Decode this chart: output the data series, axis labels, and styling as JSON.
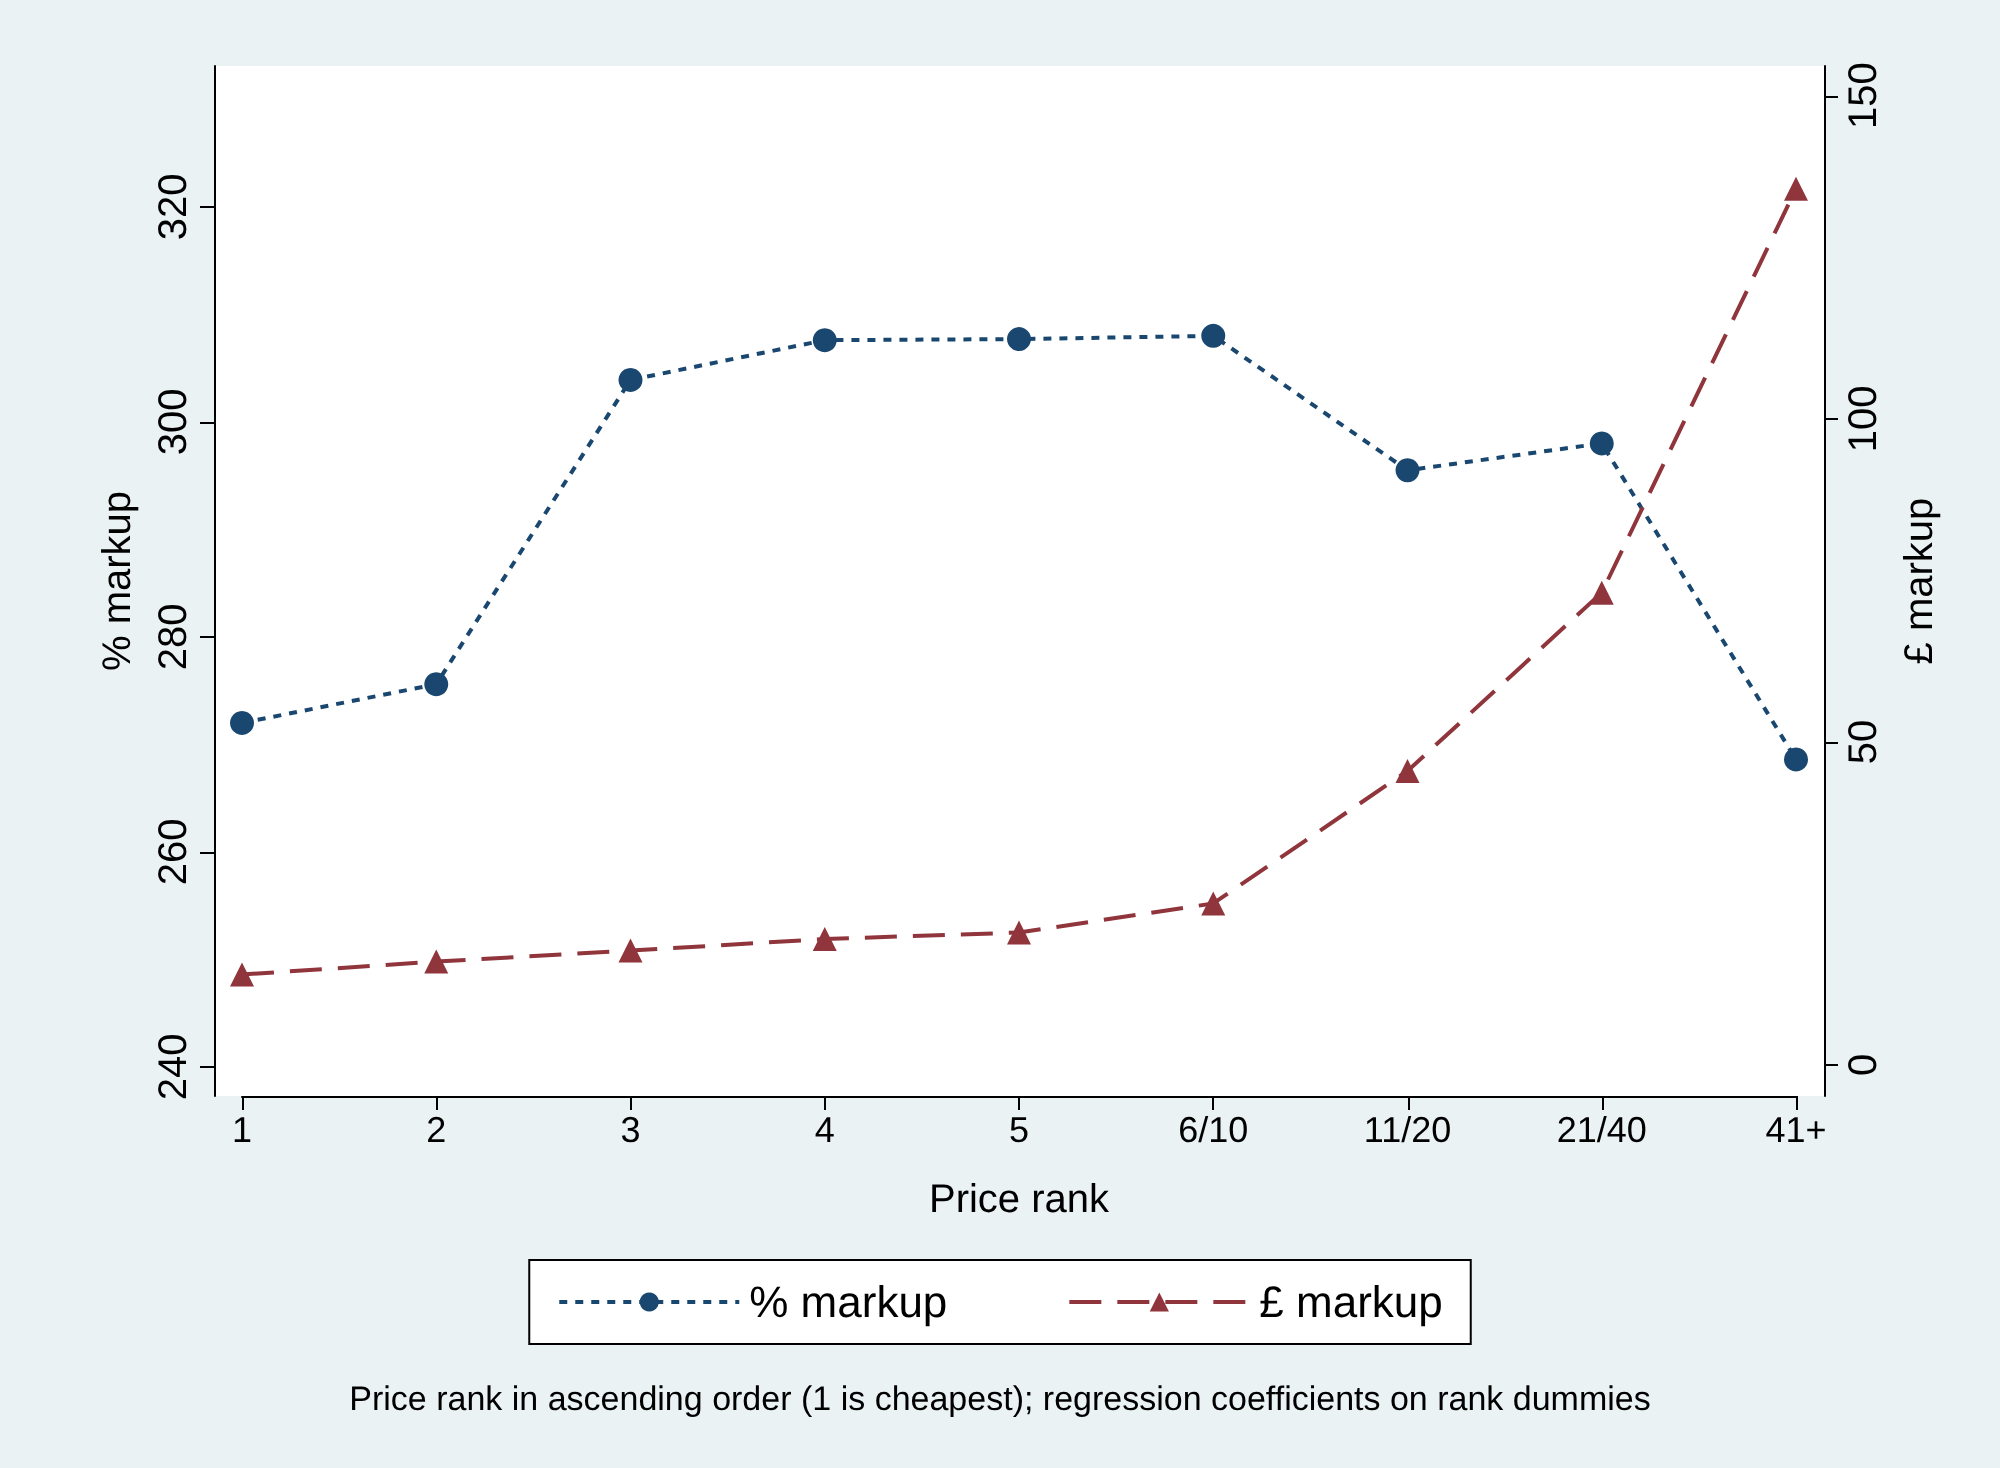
{
  "chart_data": {
    "type": "line",
    "xlabel": "Price rank",
    "ylabel": "% markup",
    "y2label": "£ markup",
    "categories": [
      "1",
      "2",
      "3",
      "4",
      "5",
      "6/10",
      "11/20",
      "21/40",
      "41+"
    ],
    "series": [
      {
        "name": "% markup",
        "color": "#1a476f",
        "marker": "circle",
        "line_style": "dotted",
        "values": [
          272.0,
          275.6,
          303.9,
          307.6,
          307.7,
          308.0,
          295.5,
          298.0,
          268.6
        ]
      },
      {
        "name": "£ markup",
        "color": "#90353b",
        "marker": "triangle",
        "line_style": "dashed",
        "axis": "y2",
        "values": [
          14.0,
          16.0,
          17.7,
          19.5,
          20.5,
          25.0,
          45.5,
          73.1,
          135.6
        ]
      }
    ],
    "ylim": [
      237.3,
      333.1
    ],
    "yticks": [
      240,
      260,
      280,
      300,
      320
    ],
    "y2lim": [
      -4.8,
      154.6
    ],
    "y2ticks": [
      0,
      50,
      100,
      150
    ],
    "grid": false,
    "legend": "bottom",
    "annotations": [
      "Price rank in ascending order (1 is cheapest); regression coefficients on rank dummies"
    ]
  }
}
